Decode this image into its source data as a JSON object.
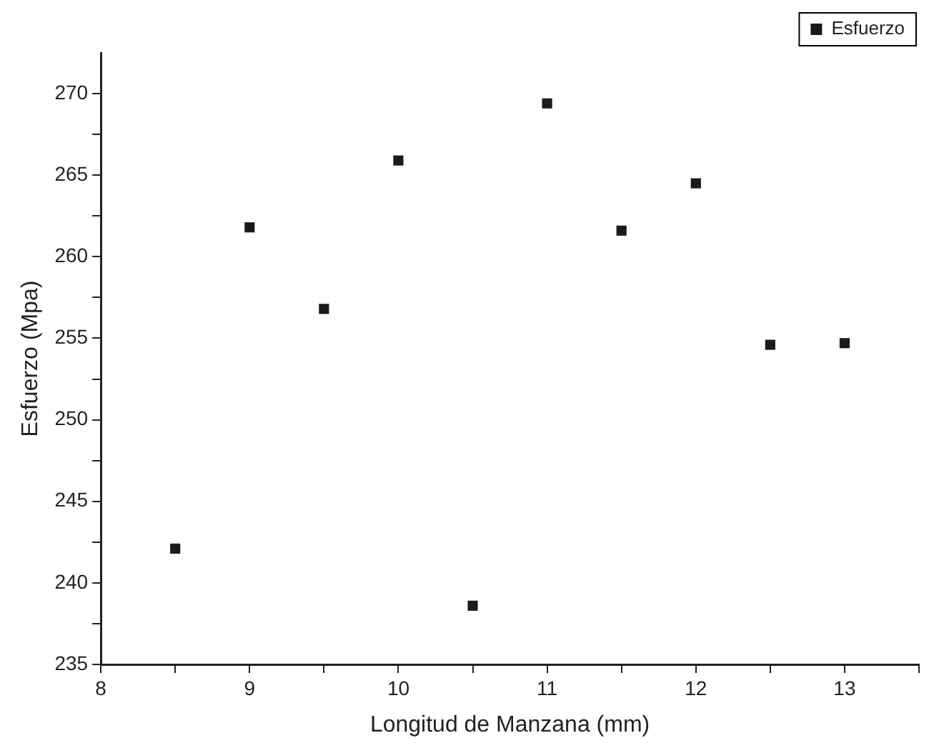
{
  "chart_data": {
    "type": "scatter",
    "xlabel": "Longitud de Manzana (mm)",
    "ylabel": "Esfuerzo (Mpa)",
    "x": [
      8.5,
      9,
      9.5,
      10,
      10.5,
      11,
      11.5,
      12,
      12.5,
      13
    ],
    "series": [
      {
        "name": "Esfuerzo",
        "color": "#1a1a1a",
        "values": [
          242.1,
          261.8,
          256.8,
          265.9,
          238.6,
          269.4,
          261.6,
          264.5,
          254.6,
          254.7
        ]
      }
    ],
    "xlim": [
      8,
      13.5
    ],
    "xticks": [
      8,
      {
        "value": 8.5,
        "label": null
      },
      9,
      {
        "value": 9.5,
        "label": null
      },
      10,
      {
        "value": 10.5,
        "label": null
      },
      11,
      {
        "value": 11.5,
        "label": null
      },
      12,
      {
        "value": 12.5,
        "label": null
      },
      13,
      {
        "value": 13.5,
        "label": null
      }
    ],
    "ylim": [
      235,
      272.5
    ],
    "yticks": [
      235,
      {
        "value": 237.5,
        "label": null
      },
      240,
      {
        "value": 242.5,
        "label": null
      },
      245,
      {
        "value": 247.5,
        "label": null
      },
      250,
      {
        "value": 252.5,
        "label": null
      },
      255,
      {
        "value": 257.5,
        "label": null
      },
      260,
      {
        "value": 262.5,
        "label": null
      },
      265,
      {
        "value": 267.5,
        "label": null
      },
      270
    ],
    "marker": "square",
    "grid": false,
    "legend": "top right"
  }
}
